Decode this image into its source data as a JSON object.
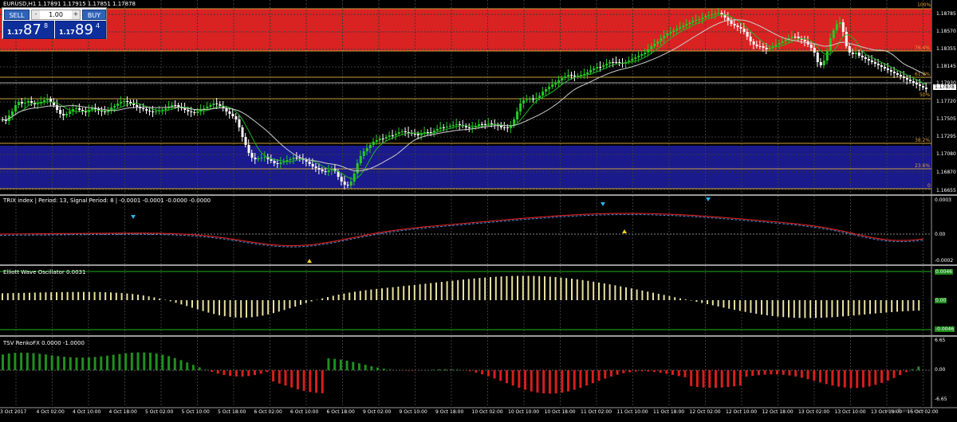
{
  "chart": {
    "title": "EURUSD,H1  1.17891 1.17915 1.17851 1.17878",
    "price_axis": [
      "1.18785",
      "1.18570",
      "1.18355",
      "1.18145",
      "1.17930",
      "1.17720",
      "1.17505",
      "1.17295",
      "1.17080",
      "1.16870",
      "1.16655"
    ],
    "current_price": "1.17878",
    "fib_labels": [
      "100%",
      "76.4%",
      "61.8%",
      "50%",
      "38.2%",
      "23.6%",
      "0"
    ],
    "time_axis": [
      "3 Oct 2017",
      "4 Oct 02:00",
      "4 Oct 10:00",
      "4 Oct 18:00",
      "5 Oct 02:00",
      "5 Oct 10:00",
      "5 Oct 18:00",
      "6 Oct 02:00",
      "6 Oct 10:00",
      "6 Oct 18:00",
      "9 Oct 02:00",
      "9 Oct 10:00",
      "9 Oct 18:00",
      "10 Oct 02:00",
      "10 Oct 10:00",
      "10 Oct 18:00",
      "11 Oct 02:00",
      "11 Oct 10:00",
      "11 Oct 18:00",
      "12 Oct 02:00",
      "12 Oct 10:00",
      "12 Oct 18:00",
      "13 Oct 02:00",
      "13 Oct 10:00",
      "13 Oct 18:00",
      "16 Oct 02:00"
    ],
    "watermark": "www.fxmt4.com",
    "colors": {
      "red_zone": "#d92222",
      "blue_zone": "#1a1a8c",
      "up_candle": "#22cc22",
      "down_candle": "#ffffff",
      "fib": "#c8a040",
      "grid": "#3a3a3a"
    }
  },
  "trade_panel": {
    "sell_label": "SELL",
    "buy_label": "BUY",
    "lot_value": "1.00",
    "minus": "-",
    "plus": "+",
    "sell_prefix": "1.17",
    "sell_big": "87",
    "sell_sup": "8",
    "buy_prefix": "1.17",
    "buy_big": "89",
    "buy_sup": "4"
  },
  "trix": {
    "title": "TRIX index | Period: 13, Signal Period: 8 | -0.0001 -0.0001 -0.0000 -0.0000",
    "axis": [
      "0.0003",
      "0.00",
      "-0.0002"
    ]
  },
  "ewo": {
    "title": "Elliott Wave Oscillator  0.0031",
    "axis": [
      "0.0046",
      "0.00",
      "-0.0046"
    ]
  },
  "tsv": {
    "title": "TSV   RenkoFX 0.0000 -1.0000",
    "axis": [
      "6.65",
      "0.00",
      "-6.65"
    ]
  }
}
